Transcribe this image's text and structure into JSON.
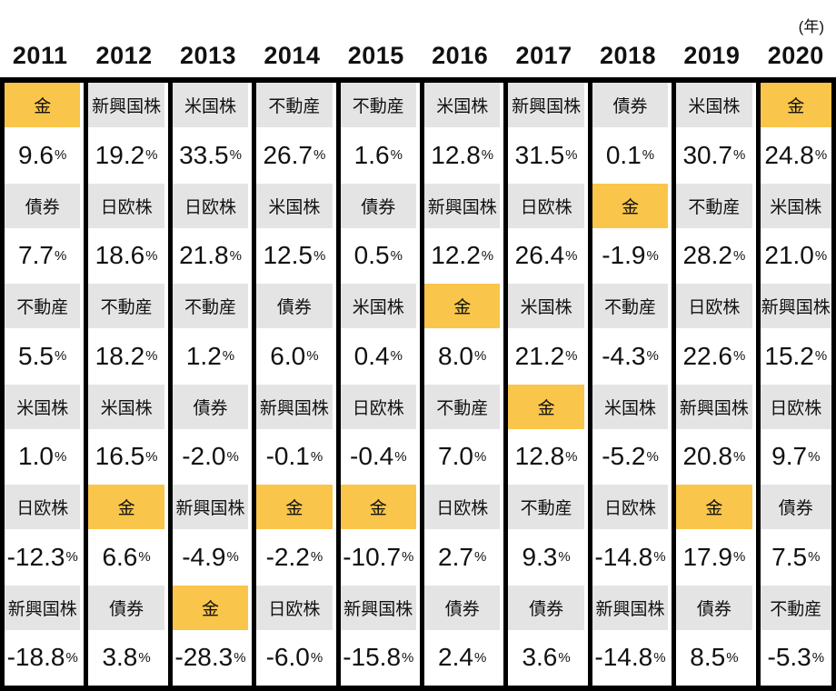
{
  "header": {
    "unit_label": "(年)"
  },
  "colors": {
    "gold": "#F9C54A",
    "gray": "#E4E4E4",
    "border": "#000000"
  },
  "asset_classes": [
    "金",
    "新興国株",
    "米国株",
    "不動産",
    "債券",
    "日欧株"
  ],
  "highlight_asset": "金",
  "chart_data": {
    "type": "table",
    "title": "",
    "unit": "(年)",
    "percent_suffix": "%",
    "years": [
      "2011",
      "2012",
      "2013",
      "2014",
      "2015",
      "2016",
      "2017",
      "2018",
      "2019",
      "2020"
    ],
    "columns": [
      {
        "year": "2011",
        "cells": [
          {
            "label": "金",
            "value": "9.6",
            "highlight": true
          },
          {
            "label": "債券",
            "value": "7.7",
            "highlight": false
          },
          {
            "label": "不動産",
            "value": "5.5",
            "highlight": false
          },
          {
            "label": "米国株",
            "value": "1.0",
            "highlight": false
          },
          {
            "label": "日欧株",
            "value": "-12.3",
            "highlight": false
          },
          {
            "label": "新興国株",
            "value": "-18.8",
            "highlight": false
          }
        ]
      },
      {
        "year": "2012",
        "cells": [
          {
            "label": "新興国株",
            "value": "19.2",
            "highlight": false
          },
          {
            "label": "日欧株",
            "value": "18.6",
            "highlight": false
          },
          {
            "label": "不動産",
            "value": "18.2",
            "highlight": false
          },
          {
            "label": "米国株",
            "value": "16.5",
            "highlight": false
          },
          {
            "label": "金",
            "value": "6.6",
            "highlight": true
          },
          {
            "label": "債券",
            "value": "3.8",
            "highlight": false
          }
        ]
      },
      {
        "year": "2013",
        "cells": [
          {
            "label": "米国株",
            "value": "33.5",
            "highlight": false
          },
          {
            "label": "日欧株",
            "value": "21.8",
            "highlight": false
          },
          {
            "label": "不動産",
            "value": "1.2",
            "highlight": false
          },
          {
            "label": "債券",
            "value": "-2.0",
            "highlight": false
          },
          {
            "label": "新興国株",
            "value": "-4.9",
            "highlight": false
          },
          {
            "label": "金",
            "value": "-28.3",
            "highlight": true
          }
        ]
      },
      {
        "year": "2014",
        "cells": [
          {
            "label": "不動産",
            "value": "26.7",
            "highlight": false
          },
          {
            "label": "米国株",
            "value": "12.5",
            "highlight": false
          },
          {
            "label": "債券",
            "value": "6.0",
            "highlight": false
          },
          {
            "label": "新興国株",
            "value": "-0.1",
            "highlight": false
          },
          {
            "label": "金",
            "value": "-2.2",
            "highlight": true
          },
          {
            "label": "日欧株",
            "value": "-6.0",
            "highlight": false
          }
        ]
      },
      {
        "year": "2015",
        "cells": [
          {
            "label": "不動産",
            "value": "1.6",
            "highlight": false
          },
          {
            "label": "債券",
            "value": "0.5",
            "highlight": false
          },
          {
            "label": "米国株",
            "value": "0.4",
            "highlight": false
          },
          {
            "label": "日欧株",
            "value": "-0.4",
            "highlight": false
          },
          {
            "label": "金",
            "value": "-10.7",
            "highlight": true
          },
          {
            "label": "新興国株",
            "value": "-15.8",
            "highlight": false
          }
        ]
      },
      {
        "year": "2016",
        "cells": [
          {
            "label": "米国株",
            "value": "12.8",
            "highlight": false
          },
          {
            "label": "新興国株",
            "value": "12.2",
            "highlight": false
          },
          {
            "label": "金",
            "value": "8.0",
            "highlight": true
          },
          {
            "label": "不動産",
            "value": "7.0",
            "highlight": false
          },
          {
            "label": "日欧株",
            "value": "2.7",
            "highlight": false
          },
          {
            "label": "債券",
            "value": "2.4",
            "highlight": false
          }
        ]
      },
      {
        "year": "2017",
        "cells": [
          {
            "label": "新興国株",
            "value": "31.5",
            "highlight": false
          },
          {
            "label": "日欧株",
            "value": "26.4",
            "highlight": false
          },
          {
            "label": "米国株",
            "value": "21.2",
            "highlight": false
          },
          {
            "label": "金",
            "value": "12.8",
            "highlight": true
          },
          {
            "label": "不動産",
            "value": "9.3",
            "highlight": false
          },
          {
            "label": "債券",
            "value": "3.6",
            "highlight": false
          }
        ]
      },
      {
        "year": "2018",
        "cells": [
          {
            "label": "債券",
            "value": "0.1",
            "highlight": false
          },
          {
            "label": "金",
            "value": "-1.9",
            "highlight": true
          },
          {
            "label": "不動産",
            "value": "-4.3",
            "highlight": false
          },
          {
            "label": "米国株",
            "value": "-5.2",
            "highlight": false
          },
          {
            "label": "日欧株",
            "value": "-14.8",
            "highlight": false
          },
          {
            "label": "新興国株",
            "value": "-14.8",
            "highlight": false
          }
        ]
      },
      {
        "year": "2019",
        "cells": [
          {
            "label": "米国株",
            "value": "30.7",
            "highlight": false
          },
          {
            "label": "不動産",
            "value": "28.2",
            "highlight": false
          },
          {
            "label": "日欧株",
            "value": "22.6",
            "highlight": false
          },
          {
            "label": "新興国株",
            "value": "20.8",
            "highlight": false
          },
          {
            "label": "金",
            "value": "17.9",
            "highlight": true
          },
          {
            "label": "債券",
            "value": "8.5",
            "highlight": false
          }
        ]
      },
      {
        "year": "2020",
        "cells": [
          {
            "label": "金",
            "value": "24.8",
            "highlight": true
          },
          {
            "label": "米国株",
            "value": "21.0",
            "highlight": false
          },
          {
            "label": "新興国株",
            "value": "15.2",
            "highlight": false
          },
          {
            "label": "日欧株",
            "value": "9.7",
            "highlight": false
          },
          {
            "label": "債券",
            "value": "7.5",
            "highlight": false
          },
          {
            "label": "不動産",
            "value": "-5.3",
            "highlight": false
          }
        ]
      }
    ]
  }
}
